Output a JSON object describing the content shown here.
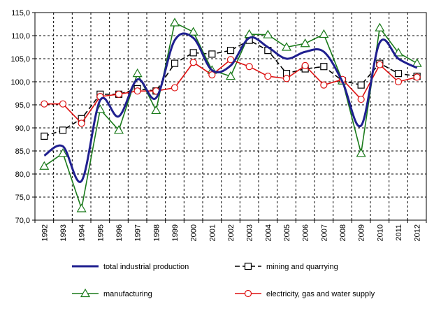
{
  "chart_data": {
    "type": "line",
    "title": "",
    "xlabel": "",
    "ylabel": "",
    "ylim": [
      70,
      115
    ],
    "ystep": 5,
    "grid": true,
    "legend_position": "bottom",
    "categories": [
      "1992",
      "1993",
      "1994",
      "1995",
      "1996",
      "1997",
      "1998",
      "1999",
      "2000",
      "2001",
      "2002",
      "2003",
      "2004",
      "2005",
      "2006",
      "2007",
      "2008",
      "2009",
      "2010",
      "2011",
      "2012"
    ],
    "y_tick_labels": [
      "70,0",
      "75,0",
      "80,0",
      "85,0",
      "90,0",
      "95,0",
      "100,0",
      "105,0",
      "110,0",
      "115,0"
    ],
    "series": [
      {
        "name": "total industrial production",
        "color": "#1f1f8f",
        "marker": "none",
        "smooth": true,
        "values": [
          84.0,
          86.0,
          78.5,
          96.0,
          92.5,
          100.5,
          96.5,
          109.0,
          109.5,
          102.5,
          103.5,
          109.5,
          107.5,
          105.0,
          106.5,
          106.5,
          100.0,
          90.5,
          108.5,
          105.0,
          103.0
        ]
      },
      {
        "name": "mining and quarrying",
        "color": "#000000",
        "marker": "square",
        "dashed": true,
        "values": [
          88.2,
          89.5,
          92.0,
          97.3,
          97.3,
          98.5,
          98.0,
          104.0,
          106.3,
          106.0,
          106.8,
          109.0,
          106.8,
          101.8,
          102.8,
          103.3,
          100.2,
          99.3,
          104.0,
          101.8,
          101.2
        ]
      },
      {
        "name": "manufacturing",
        "color": "#1a7a1a",
        "marker": "triangle",
        "values": [
          81.7,
          84.5,
          72.5,
          94.0,
          89.5,
          101.8,
          93.8,
          112.8,
          110.8,
          102.5,
          101.2,
          110.3,
          110.2,
          107.5,
          108.3,
          110.3,
          100.2,
          84.5,
          111.7,
          106.3,
          104.0
        ]
      },
      {
        "name": "electricity, gas and water supply",
        "color": "#dd1111",
        "marker": "circle",
        "values": [
          95.2,
          95.2,
          91.0,
          96.8,
          97.3,
          98.0,
          98.0,
          98.7,
          104.2,
          101.5,
          104.8,
          103.3,
          101.2,
          100.7,
          103.5,
          99.3,
          100.5,
          96.2,
          103.7,
          100.0,
          101.0
        ]
      }
    ]
  }
}
